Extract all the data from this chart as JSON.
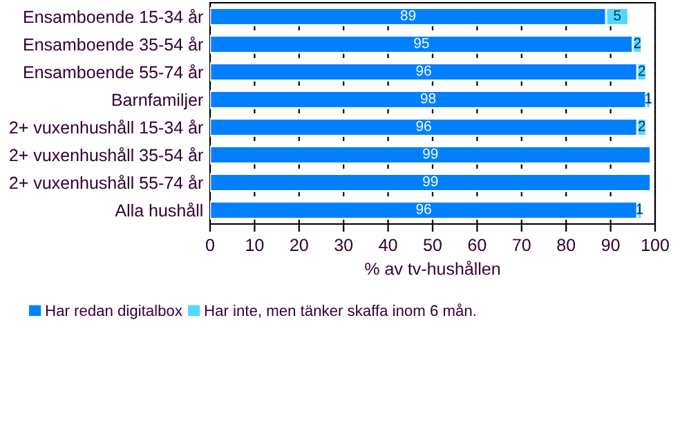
{
  "chart_data": {
    "type": "bar",
    "orientation": "horizontal",
    "stacked": true,
    "categories": [
      "Ensamboende 15-34 år",
      "Ensamboende 35-54 år",
      "Ensamboende 55-74 år",
      "Barnfamiljer",
      "2+ vuxenhushåll 15-34 år",
      "2+ vuxenhushåll 35-54 år",
      "2+ vuxenhushåll 55-74 år",
      "Alla hushåll"
    ],
    "series": [
      {
        "name": "Har redan digitalbox",
        "color": "#0080ff",
        "values": [
          89,
          95,
          96,
          98,
          96,
          99,
          99,
          96
        ]
      },
      {
        "name": "Har inte, men tänker skaffa inom 6 mån.",
        "color": "#55d8ff",
        "values": [
          5,
          2,
          2,
          1,
          2,
          null,
          null,
          1
        ]
      }
    ],
    "xlabel": "% av tv-hushållen",
    "xlim": [
      0,
      100
    ],
    "xticks": [
      0,
      10,
      20,
      30,
      40,
      50,
      60,
      70,
      80,
      90,
      100
    ],
    "grid": "x",
    "legend": "bottom",
    "data_labels": true
  }
}
